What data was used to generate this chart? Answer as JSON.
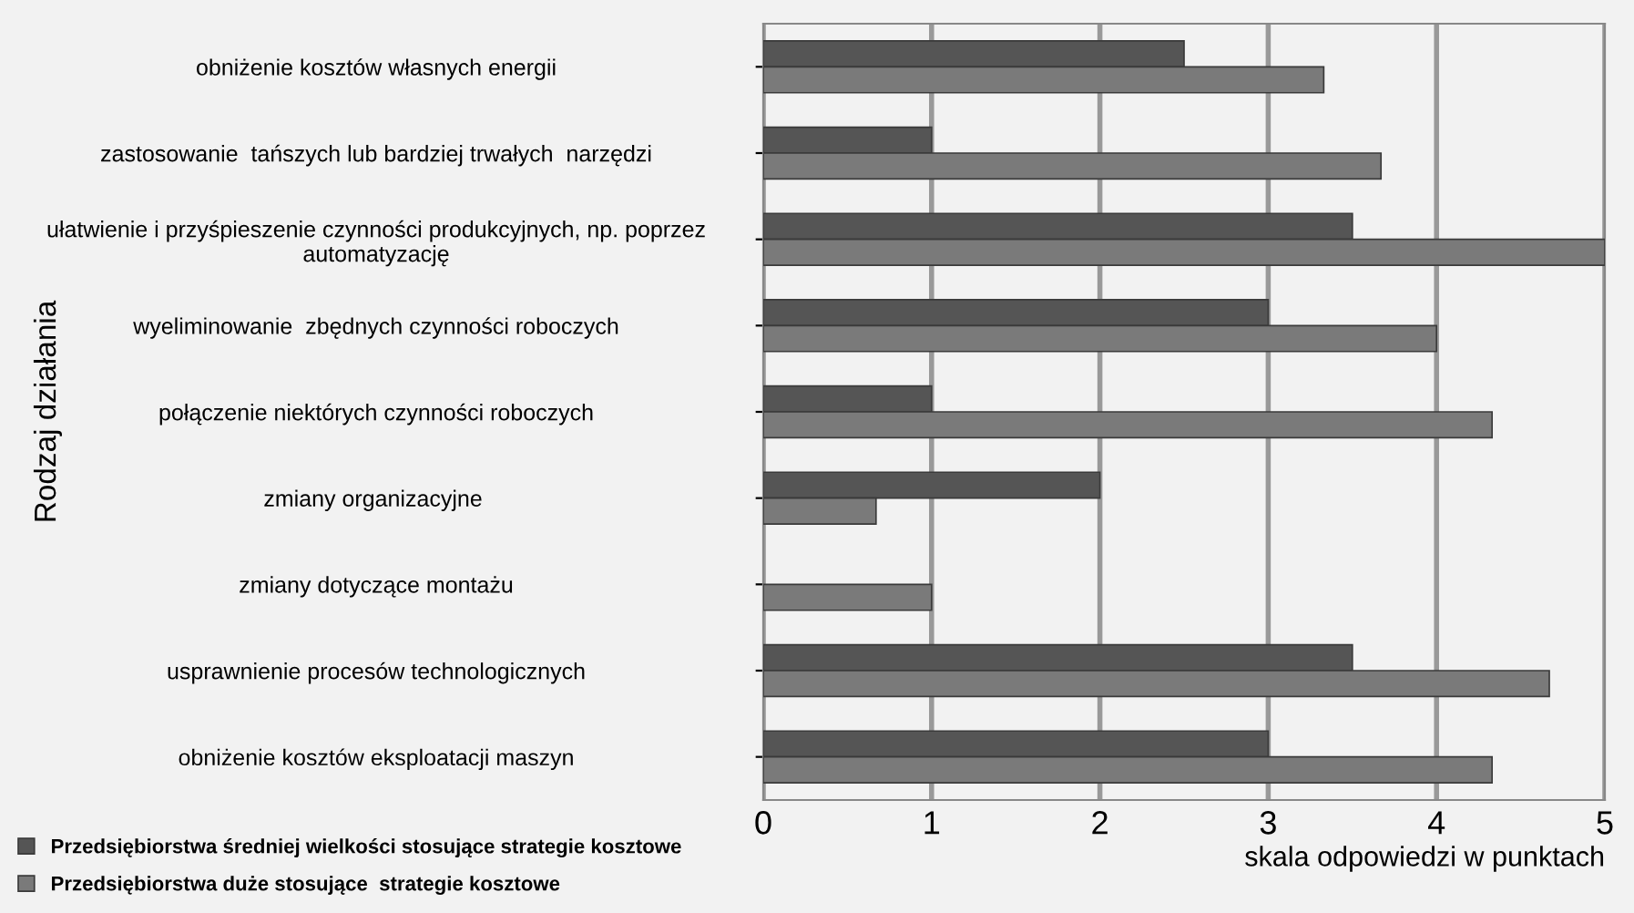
{
  "chart_data": {
    "type": "bar",
    "orientation": "horizontal",
    "xlabel": "skala odpowiedzi w punktach",
    "ylabel": "Rodzaj działania",
    "categories": [
      "obniżenie kosztów własnych energii",
      "zastosowanie  tańszych lub bardziej trwałych  narzędzi",
      "ułatwienie i przyśpieszenie czynności produkcyjnych, np. poprzez automatyzację",
      "wyeliminowanie  zbędnych czynności roboczych",
      "połączenie niektórych czynności roboczych",
      "zmiany organizacyjne ",
      "zmiany dotyczące montażu",
      "usprawnienie procesów technologicznych",
      "obniżenie kosztów eksploatacji maszyn"
    ],
    "series": [
      {
        "name": "Przedsiębiorstwa średniej wielkości stosujące strategie kosztowe",
        "color": "#555555",
        "values": [
          2.5,
          1,
          3.5,
          3,
          1,
          2,
          null,
          3.5,
          3
        ]
      },
      {
        "name": "Przedsiębiorstwa duże stosujące  strategie kosztowe",
        "color": "#7a7a7a",
        "values": [
          3.33,
          3.67,
          5,
          4,
          4.33,
          0.67,
          1,
          4.67,
          4.33
        ]
      }
    ],
    "xlim": [
      0,
      5
    ],
    "xticks": [
      0,
      1,
      2,
      3,
      4,
      5
    ],
    "grid": "x",
    "legend": "bottom left"
  }
}
